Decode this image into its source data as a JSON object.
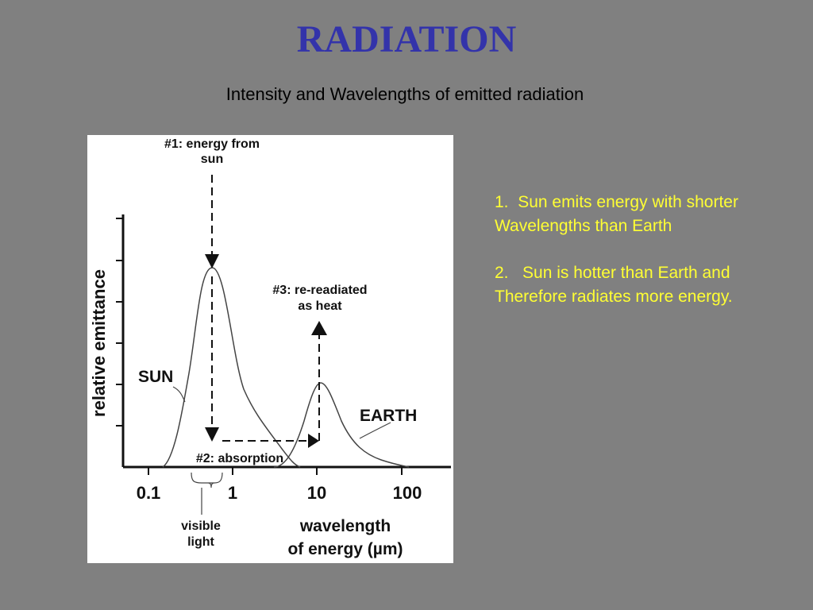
{
  "slide": {
    "title": "RADIATION",
    "subtitle": "Intensity and Wavelengths of emitted radiation"
  },
  "diagram": {
    "labels": {
      "energy_from_sun_line1": "#1: energy from",
      "energy_from_sun_line2": "sun",
      "reradiated_line1": "#3: re-readiated",
      "reradiated_line2": "as heat",
      "absorption": "#2: absorption",
      "sun_curve": "SUN",
      "earth_curve": "EARTH",
      "y_axis": "relative emittance",
      "x_axis_line1": "wavelength",
      "x_axis_line2": "of energy (µm)",
      "visible_line1": "visible",
      "visible_line2": "light"
    },
    "x_ticks": [
      "0.1",
      "1",
      "10",
      "100"
    ]
  },
  "notes": [
    {
      "number": "1.",
      "line1": "Sun emits energy with shorter",
      "line2": "Wavelengths than Earth"
    },
    {
      "number": "2.",
      "line1": "Sun is hotter than Earth and",
      "line2": "Therefore radiates more energy."
    }
  ],
  "colors": {
    "background": "#808080",
    "title": "#3333aa",
    "notes": "#ffff33",
    "panel": "#ffffff",
    "ink": "#111111"
  }
}
